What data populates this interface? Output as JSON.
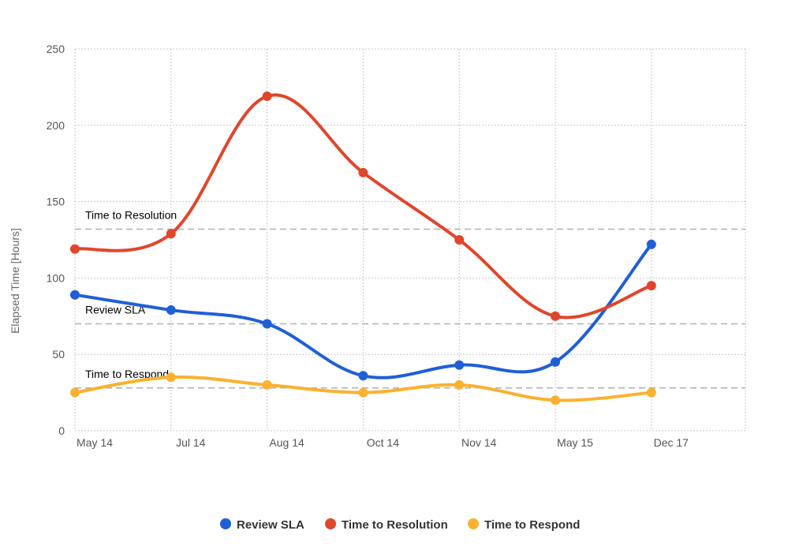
{
  "chart_data": {
    "type": "line",
    "title": "",
    "xlabel": "",
    "ylabel": "Elapsed Time [Hours]",
    "ylim": [
      0,
      250
    ],
    "yticks": [
      0,
      50,
      100,
      150,
      200,
      250
    ],
    "grid": true,
    "categories": [
      "May 14",
      "Jul 14",
      "Aug 14",
      "Oct 14",
      "Nov 14",
      "May 15",
      "Dec 17"
    ],
    "series": [
      {
        "name": "Review SLA",
        "color": "#1f5fd6",
        "values": [
          89,
          79,
          70,
          36,
          43,
          45,
          122
        ]
      },
      {
        "name": "Time to Resolution",
        "color": "#e0462b",
        "values": [
          119,
          129,
          219,
          169,
          125,
          75,
          95
        ]
      },
      {
        "name": "Time to Respond",
        "color": "#fbb12f",
        "values": [
          25,
          35,
          30,
          25,
          30,
          20,
          25
        ]
      }
    ],
    "plot_lines": [
      {
        "label": "Time to Resolution",
        "value": 132
      },
      {
        "label": "Review SLA",
        "value": 70
      },
      {
        "label": "Time to Respond",
        "value": 28
      }
    ],
    "legend_position": "bottom-center"
  }
}
